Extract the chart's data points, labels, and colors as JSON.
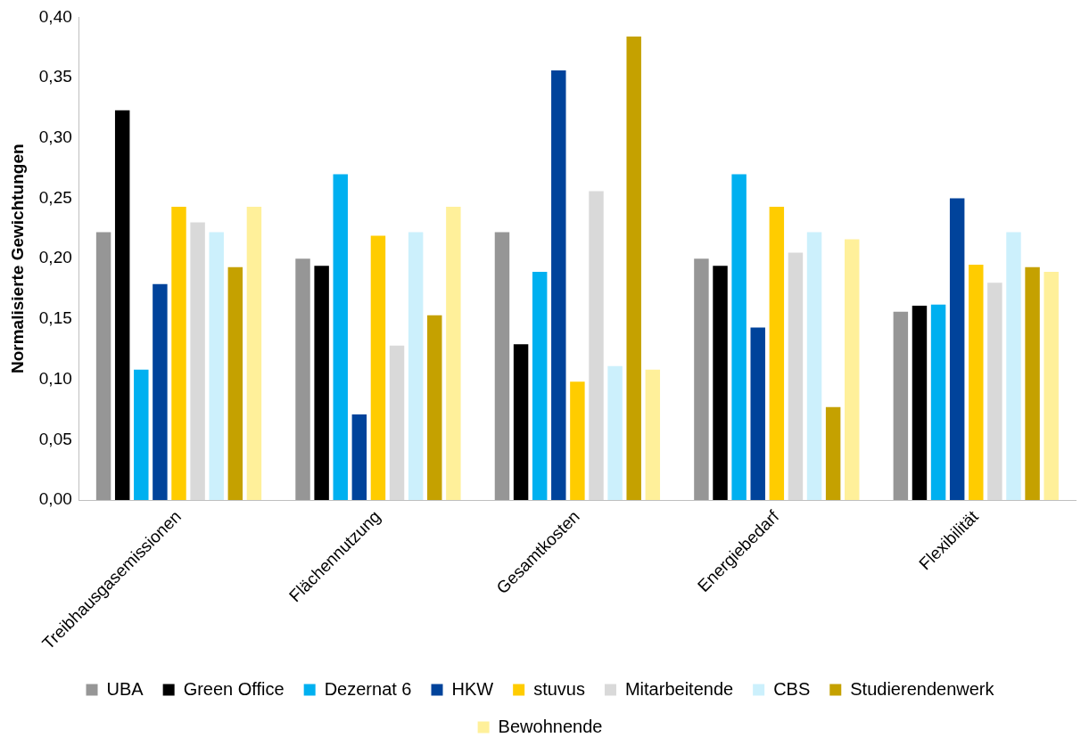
{
  "chart_data": {
    "type": "bar",
    "ylabel": "Normalisierte Gewichtungen",
    "categories": [
      "Treibhausgasemissionen",
      "Flächennutzung",
      "Gesamtkosten",
      "Energiebedarf",
      "Flexibilität"
    ],
    "series": [
      {
        "name": "UBA",
        "color": "#969696",
        "values": [
          0.222,
          0.2,
          0.222,
          0.2,
          0.156
        ]
      },
      {
        "name": "Green Office",
        "color": "#000000",
        "values": [
          0.323,
          0.194,
          0.129,
          0.194,
          0.161
        ]
      },
      {
        "name": "Dezernat 6",
        "color": "#00b0f0",
        "values": [
          0.108,
          0.27,
          0.189,
          0.27,
          0.162
        ]
      },
      {
        "name": "HKW",
        "color": "#00439b",
        "values": [
          0.179,
          0.071,
          0.356,
          0.143,
          0.25
        ]
      },
      {
        "name": "stuvus",
        "color": "#ffcc00",
        "values": [
          0.243,
          0.219,
          0.098,
          0.243,
          0.195
        ]
      },
      {
        "name": "Mitarbeitende",
        "color": "#d9d9d9",
        "values": [
          0.23,
          0.128,
          0.256,
          0.205,
          0.18
        ]
      },
      {
        "name": "CBS",
        "color": "#ccf0fc",
        "values": [
          0.222,
          0.222,
          0.111,
          0.222,
          0.222
        ]
      },
      {
        "name": "Studierendenwerk",
        "color": "#c5a100",
        "values": [
          0.193,
          0.153,
          0.384,
          0.077,
          0.193
        ]
      },
      {
        "name": "Bewohnende",
        "color": "#fff09a",
        "values": [
          0.243,
          0.243,
          0.108,
          0.216,
          0.189
        ]
      }
    ],
    "ylim": [
      0,
      0.4
    ],
    "yticks": [
      {
        "value": 0,
        "label": "0,00"
      },
      {
        "value": 0.05,
        "label": "0,05"
      },
      {
        "value": 0.1,
        "label": "0,10"
      },
      {
        "value": 0.15,
        "label": "0,15"
      },
      {
        "value": 0.2,
        "label": "0,20"
      },
      {
        "value": 0.25,
        "label": "0,25"
      },
      {
        "value": 0.3,
        "label": "0,30"
      },
      {
        "value": 0.35,
        "label": "0,35"
      },
      {
        "value": 0.4,
        "label": "0,40"
      }
    ],
    "grid": false,
    "legend": "bottom"
  }
}
